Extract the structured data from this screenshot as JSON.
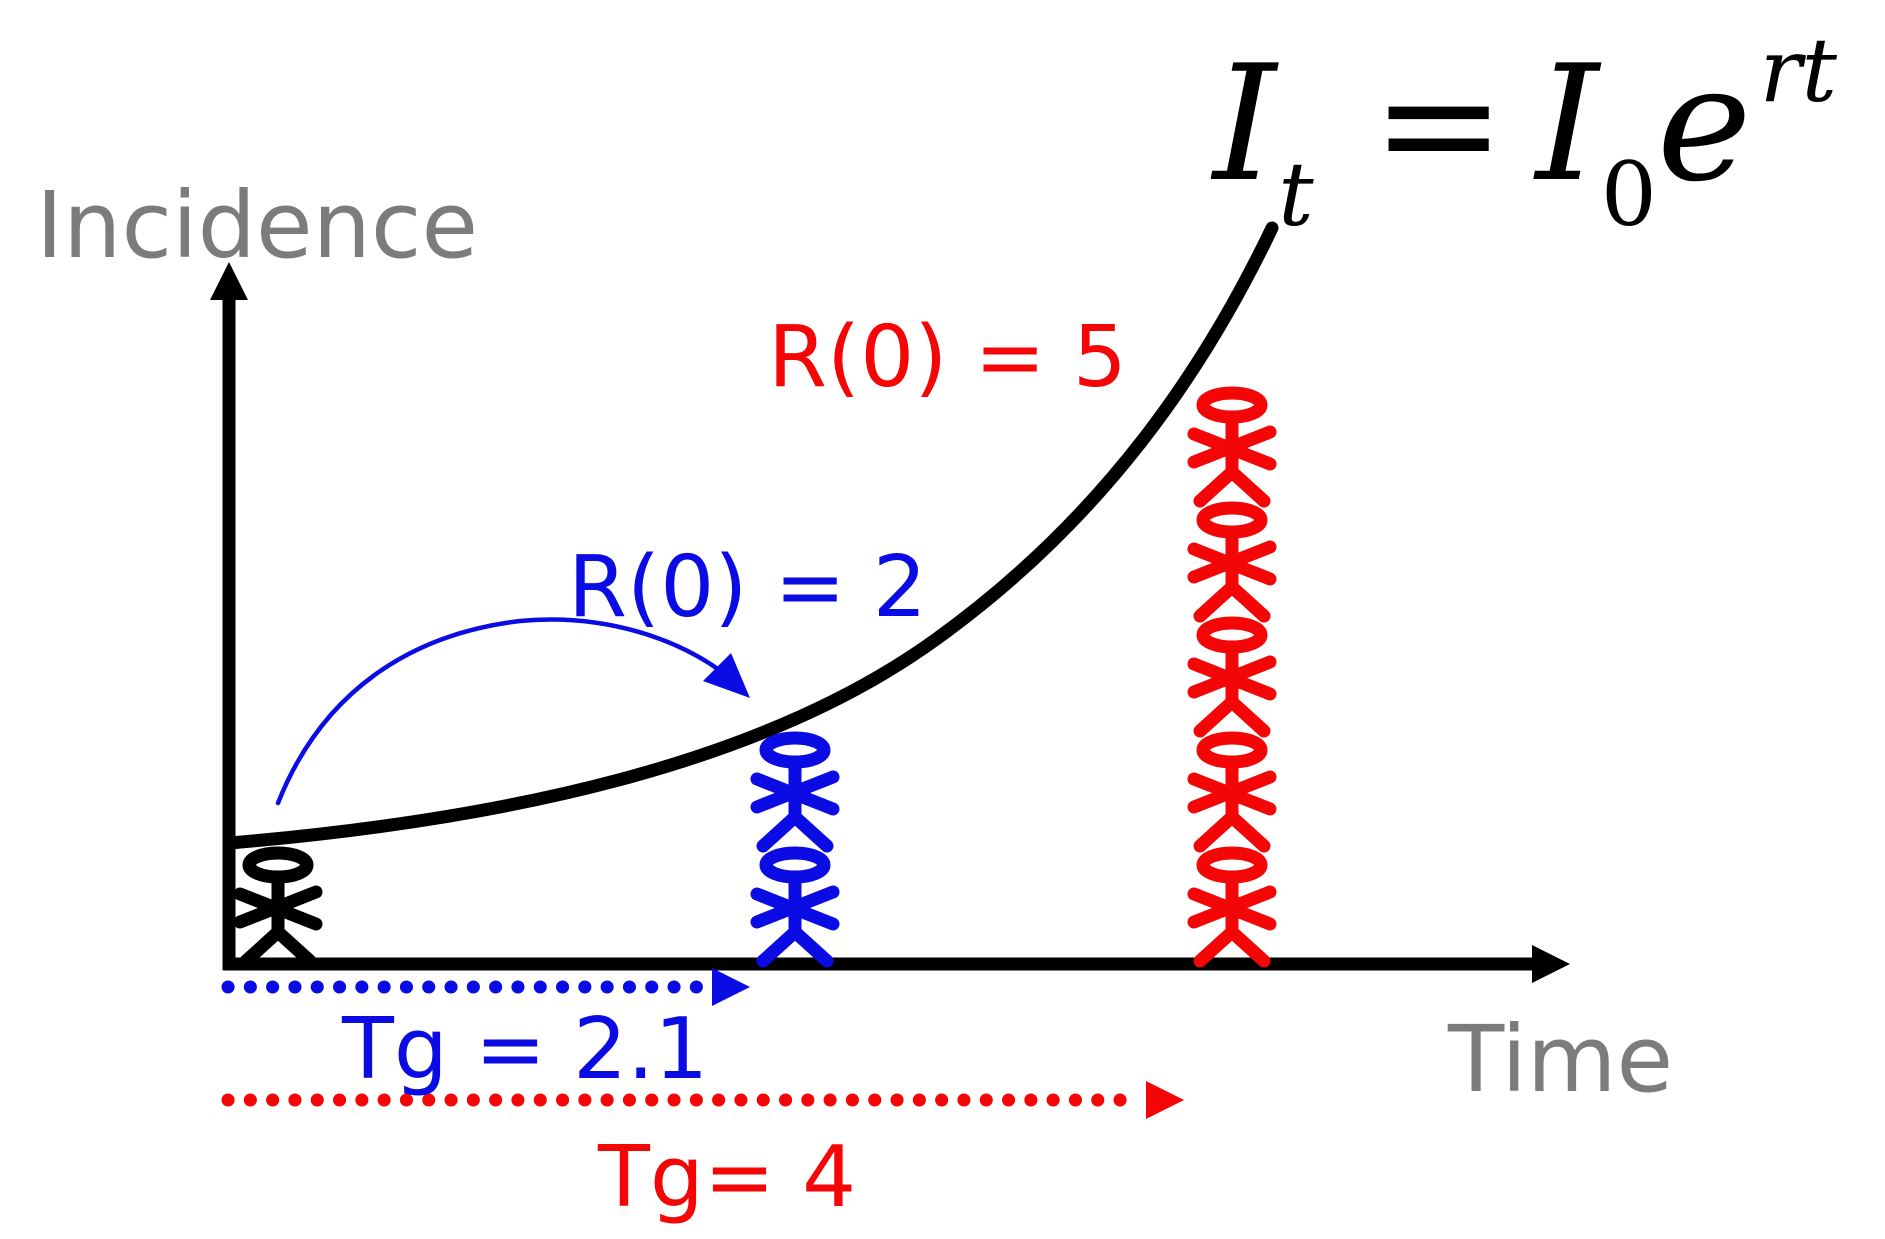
{
  "formula": {
    "lhs_symbol": "I",
    "lhs_subscript": "t",
    "equals_sign": "=",
    "rhs_symbol": "I",
    "rhs_subscript": "0",
    "exponential_base": "e",
    "exponent": "rt"
  },
  "axes": {
    "y_axis_label": "Incidence",
    "x_axis_label": "Time",
    "label_color": "#7c7c7c",
    "axis_color": "#000000"
  },
  "annotations": {
    "r0_fast_label": "R(0) = 5",
    "r0_slow_label": "R(0) = 2",
    "tg_slow_label": "Tg = 2.1",
    "tg_fast_label": "Tg= 4"
  },
  "colors": {
    "fast_red": "#f40606",
    "slow_blue": "#0b0be4",
    "black": "#000000",
    "gray": "#7c7c7c",
    "background": "#ffffff"
  },
  "people_groups": [
    {
      "id": "t0",
      "label": "initial case",
      "color": "#000000",
      "count": 1
    },
    {
      "id": "slow",
      "label": "cases after one Tg, R(0)=2",
      "color": "#0b0be4",
      "count": 2
    },
    {
      "id": "fast",
      "label": "cases after one Tg, R(0)=5",
      "color": "#f40606",
      "count": 5
    }
  ],
  "chart_data": {
    "type": "line",
    "title": "Exponential epidemic growth It = I0 e^rt",
    "xlabel": "Time",
    "ylabel": "Incidence",
    "axis_ticks": "none (conceptual diagram)",
    "series": [
      {
        "name": "incidence curve",
        "style": "exponential growth",
        "color": "#000000"
      }
    ],
    "annotations": [
      {
        "text": "R(0) = 5",
        "color": "#f40606"
      },
      {
        "text": "R(0) = 2",
        "color": "#0b0be4"
      },
      {
        "text": "Tg = 2.1",
        "color": "#0b0be4",
        "kind": "dotted-arrow generation time"
      },
      {
        "text": "Tg= 4",
        "color": "#f40606",
        "kind": "dotted-arrow generation time"
      }
    ],
    "person_stacks": [
      {
        "position": "t = 0",
        "count": 1,
        "color": "#000000"
      },
      {
        "position": "after Tg = 2.1",
        "count": 2,
        "color": "#0b0be4"
      },
      {
        "position": "after Tg = 4",
        "count": 5,
        "color": "#f40606"
      }
    ]
  }
}
